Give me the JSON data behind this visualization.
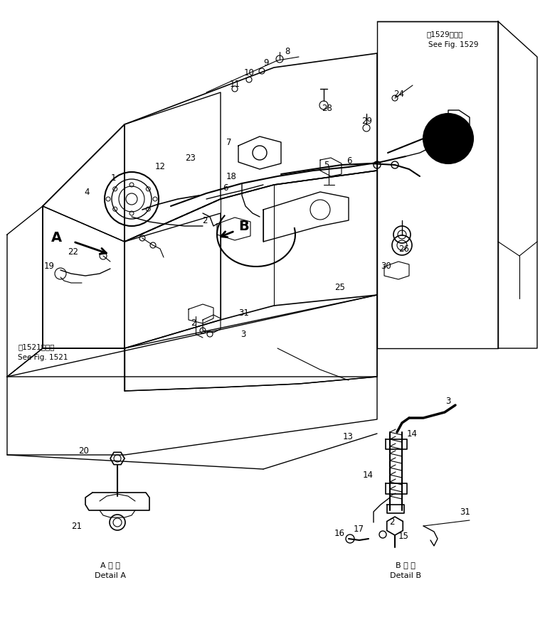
{
  "bg_color": "#ffffff",
  "line_color": "#000000",
  "fig_width": 7.66,
  "fig_height": 8.92,
  "top_right_text_line1": "第1529図参照",
  "top_right_text_line2": "See Fig. 1529",
  "bottom_left_text_line1": "第1521図参照",
  "bottom_left_text_line2": "See Fig. 1521",
  "detail_a_label_jp": "A 詳 細",
  "detail_a_label_en": "Detail A",
  "detail_b_label_jp": "B 詳 細",
  "detail_b_label_en": "Detail B"
}
